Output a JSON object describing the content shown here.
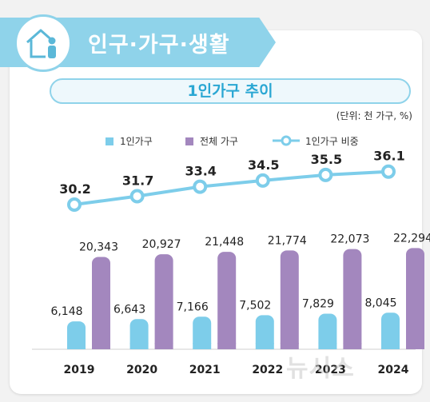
{
  "header": {
    "section_title": "인구·가구·생활",
    "icon": "house-person-icon"
  },
  "chart_title": "1인가구 추이",
  "unit_note": "(단위: 천 가구, %)",
  "watermark": "뉴시스",
  "colors": {
    "one_person_bar": "#7dcdea",
    "total_bar": "#a387be",
    "ratio_line": "#7dcdea",
    "banner": "#8fd3ea",
    "title_text": "#2aa7d3"
  },
  "chart_data": {
    "type": "bar",
    "categories": [
      "2019",
      "2020",
      "2021",
      "2022",
      "2023",
      "2024"
    ],
    "series": [
      {
        "name": "1인가구",
        "type": "bar",
        "values": [
          6148,
          6643,
          7166,
          7502,
          7829,
          8045
        ],
        "labels": [
          "6,148",
          "6,643",
          "7,166",
          "7,502",
          "7,829",
          "8,045"
        ]
      },
      {
        "name": "전체 가구",
        "type": "bar",
        "values": [
          20343,
          20927,
          21448,
          21774,
          22073,
          22294
        ],
        "labels": [
          "20,343",
          "20,927",
          "21,448",
          "21,774",
          "22,073",
          "22,294"
        ]
      },
      {
        "name": "1인가구 비중",
        "type": "line",
        "values": [
          30.2,
          31.7,
          33.4,
          34.5,
          35.5,
          36.1
        ],
        "labels": [
          "30.2",
          "31.7",
          "33.4",
          "34.5",
          "35.5",
          "36.1"
        ]
      }
    ],
    "xlabel": "",
    "ylabel": "",
    "grid": false,
    "legend": "top"
  }
}
